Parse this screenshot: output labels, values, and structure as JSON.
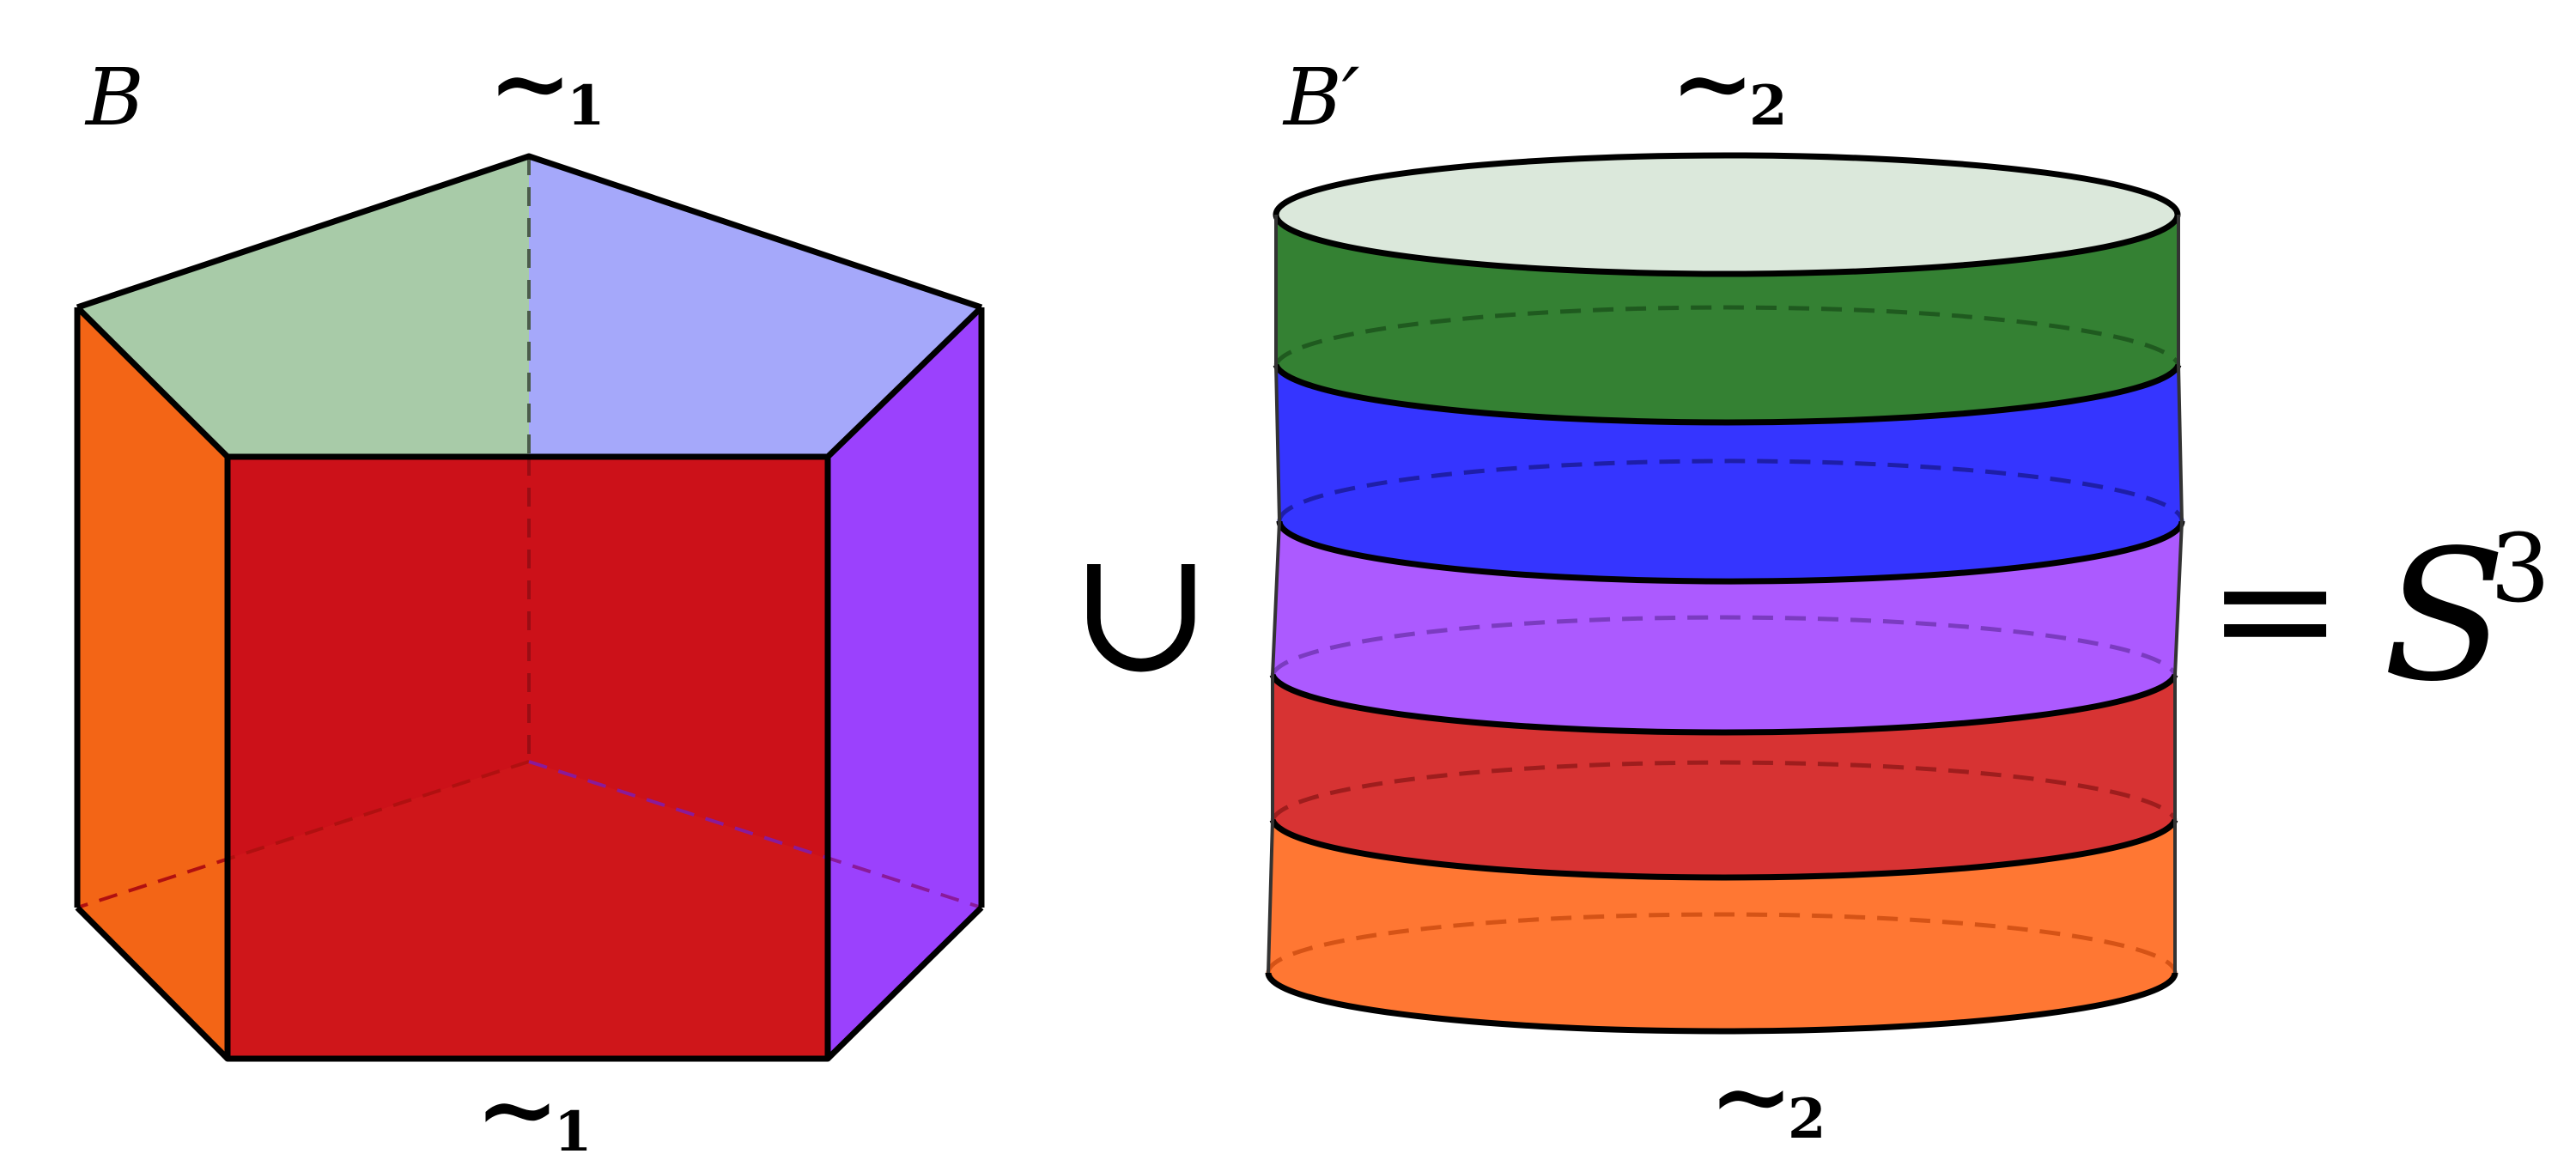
{
  "labels": {
    "b": "B",
    "b_prime": "B′",
    "tilde": "∼",
    "sub1": "1",
    "sub2": "2",
    "union": "∪",
    "equals": "=",
    "sphere": "S",
    "sphere_exp": "3"
  },
  "colors": {
    "prism_top_left": "#a8cba8",
    "prism_top_right": "#a5a8fa",
    "prism_left": "#f36516",
    "prism_front": "#cc1119",
    "prism_right": "#9b41fd",
    "prism_bottom": "#d21c1c",
    "cyl_top": "#dbe8db",
    "cyl_green": "#348133",
    "cyl_blue": "#3535ff",
    "cyl_purple": "#ac5aff",
    "cyl_red": "#d73333",
    "cyl_orange": "#ff7733",
    "stroke": "#000000"
  }
}
